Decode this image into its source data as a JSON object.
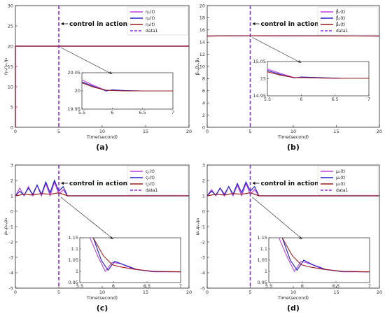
{
  "colors": {
    "eta1": "#c040e0",
    "eta2": "#2020c8",
    "eta3": "#9b1c1c",
    "data1": "#8a2be2",
    "grid": "#dddddd"
  },
  "chart_data": [
    {
      "panel_label": "(a)",
      "type": "line",
      "xlabel": "Time(second)",
      "ylabel": "η₁,η₂,η₃",
      "xlim": [
        0,
        20
      ],
      "ylim": [
        0,
        30
      ],
      "xticks": [
        "0",
        "5",
        "10",
        "15",
        "20"
      ],
      "yticks": [
        "0",
        "5",
        "10",
        "15",
        "20",
        "25",
        "30"
      ],
      "annotation": "control in action",
      "vline_x": 5,
      "series": [
        {
          "name": "η₁(t)",
          "color_key": "eta1",
          "x": [
            0,
            0,
            20
          ],
          "y": [
            0,
            20,
            20
          ]
        },
        {
          "name": "η₂(t)",
          "color_key": "eta2",
          "x": [
            0,
            0,
            20
          ],
          "y": [
            0,
            20,
            20
          ]
        },
        {
          "name": "η₃(t)",
          "color_key": "eta3",
          "x": [
            0,
            0,
            20
          ],
          "y": [
            0,
            20,
            20
          ]
        },
        {
          "name": "data1",
          "color_key": "data1",
          "dashed": true
        }
      ],
      "inset": {
        "xlim": [
          5.5,
          7
        ],
        "ylim": [
          19.95,
          20.05
        ],
        "xticks": [
          "5.5",
          "6",
          "6.5",
          "7"
        ],
        "yticks": [
          "19.95",
          "20",
          "20.05"
        ],
        "series": [
          {
            "color_key": "eta1",
            "x": [
              5.5,
              5.7,
              5.9,
              6.0,
              6.2,
              6.5,
              7.0
            ],
            "y": [
              20.03,
              20.015,
              20.001,
              20.002,
              20.0,
              20.0,
              20.0
            ]
          },
          {
            "color_key": "eta2",
            "x": [
              5.5,
              5.7,
              5.9,
              6.0,
              6.2,
              6.5,
              7.0
            ],
            "y": [
              20.025,
              20.012,
              20.0,
              20.003,
              20.001,
              20.0,
              20.0
            ]
          },
          {
            "color_key": "eta3",
            "x": [
              5.5,
              5.7,
              5.9,
              6.0,
              6.2,
              6.5,
              7.0
            ],
            "y": [
              20.022,
              20.01,
              20.002,
              20.001,
              20.0,
              20.0,
              20.0
            ]
          }
        ]
      }
    },
    {
      "panel_label": "(b)",
      "type": "line",
      "xlabel": "Time(second)",
      "ylabel": "β₁,β₂,β₃",
      "xlim": [
        0,
        20
      ],
      "ylim": [
        0,
        20
      ],
      "xticks": [
        "0",
        "5",
        "10",
        "15",
        "20"
      ],
      "yticks": [
        "0",
        "2",
        "4",
        "6",
        "8",
        "10",
        "12",
        "14",
        "16",
        "18",
        "20"
      ],
      "annotation": "control in action",
      "vline_x": 5,
      "series": [
        {
          "name": "β̂₁(t)",
          "color_key": "eta1",
          "x": [
            0,
            5,
            20
          ],
          "y": [
            15,
            15.05,
            15
          ]
        },
        {
          "name": "β̂₂(t)",
          "color_key": "eta2",
          "x": [
            0,
            5,
            20
          ],
          "y": [
            15,
            15.05,
            15
          ]
        },
        {
          "name": "β̂₃(t)",
          "color_key": "eta3",
          "x": [
            0,
            5,
            20
          ],
          "y": [
            15,
            15.05,
            15
          ]
        },
        {
          "name": "data1",
          "color_key": "data1",
          "dashed": true
        }
      ],
      "inset": {
        "xlim": [
          5.5,
          7
        ],
        "ylim": [
          14.95,
          15.05
        ],
        "xticks": [
          "5.5",
          "6",
          "6.5",
          "7"
        ],
        "yticks": [
          "14.95",
          "15",
          "15.05"
        ],
        "series": [
          {
            "color_key": "eta1",
            "x": [
              5.5,
              5.7,
              5.9,
              6.0,
              6.3,
              6.6,
              7.0
            ],
            "y": [
              15.028,
              15.015,
              15.003,
              15.004,
              15.002,
              15.001,
              15.001
            ]
          },
          {
            "color_key": "eta2",
            "x": [
              5.5,
              5.7,
              5.9,
              6.0,
              6.3,
              6.6,
              7.0
            ],
            "y": [
              15.024,
              15.012,
              15.002,
              15.005,
              15.003,
              15.001,
              15.001
            ]
          },
          {
            "color_key": "eta3",
            "x": [
              5.5,
              5.7,
              5.9,
              6.0,
              6.3,
              6.6,
              7.0
            ],
            "y": [
              15.02,
              15.01,
              15.003,
              15.003,
              15.002,
              15.001,
              15.001
            ]
          }
        ]
      }
    },
    {
      "panel_label": "(c)",
      "type": "line",
      "xlabel": "Time(second)",
      "ylabel": "ρ₁,ρ₂,ρ₃",
      "xlim": [
        0,
        20
      ],
      "ylim": [
        -5,
        3
      ],
      "xticks": [
        "0",
        "5",
        "10",
        "15",
        "20"
      ],
      "yticks": [
        "-5",
        "-4",
        "-3",
        "-2",
        "-1",
        "0",
        "1",
        "2",
        "3"
      ],
      "annotation": "control in action",
      "vline_x": 5,
      "series": [
        {
          "name": "ς₁(t)",
          "color_key": "eta1",
          "x": [
            0,
            0.5,
            1,
            1.5,
            2,
            2.5,
            3,
            3.5,
            4,
            4.5,
            5,
            5.5,
            6,
            7,
            20
          ],
          "y": [
            1,
            1.5,
            1.0,
            1.6,
            1.0,
            1.7,
            1.0,
            1.8,
            1.0,
            1.9,
            1.1,
            1.4,
            1.0,
            1.0,
            1.0
          ]
        },
        {
          "name": "ς₂(t)",
          "color_key": "eta2",
          "x": [
            0,
            0.5,
            1,
            1.5,
            2,
            2.5,
            3,
            3.5,
            4,
            4.5,
            5,
            5.5,
            6,
            7,
            20
          ],
          "y": [
            1,
            1.3,
            1.05,
            1.5,
            1.1,
            1.7,
            1.1,
            1.9,
            1.2,
            2.0,
            1.3,
            1.6,
            1.0,
            1.0,
            1.0
          ]
        },
        {
          "name": "ς₃(t)",
          "color_key": "eta3",
          "x": [
            0,
            1,
            2,
            3,
            4,
            5,
            6,
            20
          ],
          "y": [
            1,
            1.1,
            1.05,
            1.15,
            1.1,
            1.2,
            1.0,
            1.0
          ]
        },
        {
          "name": "data1",
          "color_key": "data1",
          "dashed": true
        }
      ],
      "inset": {
        "xlim": [
          5.5,
          7
        ],
        "ylim": [
          0.95,
          1.15
        ],
        "xticks": [
          "5.5",
          "6",
          "6.5",
          "7"
        ],
        "yticks": [
          "0.95",
          "1",
          "1.05",
          "1.1",
          "1.15"
        ],
        "series": [
          {
            "color_key": "eta1",
            "x": [
              5.65,
              5.78,
              5.88,
              5.98,
              6.1,
              6.3,
              6.6,
              7.0
            ],
            "y": [
              1.15,
              1.06,
              1.0,
              1.04,
              1.035,
              1.01,
              0.998,
              0.998
            ]
          },
          {
            "color_key": "eta2",
            "x": [
              5.7,
              5.82,
              5.92,
              6.02,
              6.15,
              6.35,
              6.6,
              7.0
            ],
            "y": [
              1.15,
              1.05,
              1.005,
              1.045,
              1.03,
              1.008,
              0.999,
              0.998
            ]
          },
          {
            "color_key": "eta3",
            "x": [
              5.7,
              5.85,
              5.98,
              6.1,
              6.3,
              6.6,
              7.0
            ],
            "y": [
              1.15,
              1.07,
              1.03,
              1.02,
              1.01,
              1.0,
              0.998
            ]
          }
        ]
      }
    },
    {
      "panel_label": "(d)",
      "type": "line",
      "xlabel": "Time(second)",
      "ylabel": "ψ₁,ψ₂,ψ₃",
      "xlim": [
        0,
        20
      ],
      "ylim": [
        -5,
        3
      ],
      "xticks": [
        "0",
        "5",
        "10",
        "15",
        "20"
      ],
      "yticks": [
        "-5",
        "-4",
        "-3",
        "-2",
        "-1",
        "0",
        "1",
        "2",
        "3"
      ],
      "annotation": "control in action",
      "vline_x": 5,
      "series": [
        {
          "name": "μ₁(t)",
          "color_key": "eta1",
          "x": [
            0,
            0.5,
            1,
            1.5,
            2,
            2.5,
            3,
            3.5,
            4,
            4.5,
            5,
            5.5,
            6,
            7,
            20
          ],
          "y": [
            1,
            1.4,
            1.0,
            1.5,
            1.0,
            1.6,
            1.0,
            1.7,
            1.0,
            1.8,
            1.1,
            1.4,
            1.0,
            1.0,
            1.0
          ]
        },
        {
          "name": "μ₂(t)",
          "color_key": "eta2",
          "x": [
            0,
            0.5,
            1,
            1.5,
            2,
            2.5,
            3,
            3.5,
            4,
            4.5,
            5,
            5.5,
            6,
            7,
            20
          ],
          "y": [
            1,
            1.3,
            1.05,
            1.5,
            1.1,
            1.6,
            1.1,
            1.8,
            1.2,
            1.9,
            1.3,
            1.6,
            1.0,
            1.0,
            1.0
          ]
        },
        {
          "name": "μ₃(t)",
          "color_key": "eta3",
          "x": [
            0,
            1,
            2,
            3,
            4,
            5,
            6,
            20
          ],
          "y": [
            1,
            1.1,
            1.05,
            1.15,
            1.1,
            1.2,
            1.0,
            1.0
          ]
        },
        {
          "name": "data1",
          "color_key": "data1",
          "dashed": true
        }
      ],
      "inset": {
        "xlim": [
          5.5,
          7
        ],
        "ylim": [
          0.95,
          1.15
        ],
        "xticks": [
          "5.5",
          "6",
          "6.5",
          "7"
        ],
        "yticks": [
          "0.95",
          "1",
          "1.05",
          "1.1",
          "1.15"
        ],
        "series": [
          {
            "color_key": "eta1",
            "x": [
              5.65,
              5.78,
              5.88,
              5.98,
              6.1,
              6.3,
              6.6,
              7.0
            ],
            "y": [
              1.15,
              1.06,
              1.0,
              1.045,
              1.035,
              1.01,
              0.998,
              0.998
            ]
          },
          {
            "color_key": "eta2",
            "x": [
              5.7,
              5.82,
              5.92,
              6.02,
              6.15,
              6.35,
              6.6,
              7.0
            ],
            "y": [
              1.15,
              1.05,
              1.005,
              1.05,
              1.03,
              1.008,
              0.999,
              0.998
            ]
          },
          {
            "color_key": "eta3",
            "x": [
              5.7,
              5.85,
              5.98,
              6.1,
              6.3,
              6.6,
              7.0
            ],
            "y": [
              1.15,
              1.07,
              1.03,
              1.02,
              1.01,
              1.0,
              0.998
            ]
          }
        ]
      }
    }
  ]
}
